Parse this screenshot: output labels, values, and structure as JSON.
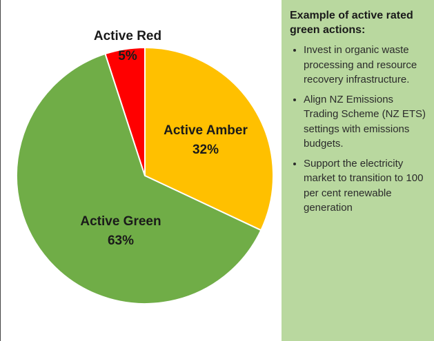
{
  "chart_data": {
    "type": "pie",
    "categories": [
      "Active Amber",
      "Active Green",
      "Active Red"
    ],
    "values": [
      32,
      63,
      5
    ],
    "value_labels": [
      "32%",
      "63%",
      "5%"
    ],
    "colors": [
      "#ffc000",
      "#70ad47",
      "#ff0000"
    ]
  },
  "panel": {
    "title": "Example of active rated green actions:",
    "items": [
      "Invest in organic waste processing and resource recovery infrastructure.",
      "Align NZ Emissions Trading Scheme (NZ ETS) settings with emissions budgets.",
      "Support the electricity market to transition to 100 per cent renewable generation"
    ]
  }
}
